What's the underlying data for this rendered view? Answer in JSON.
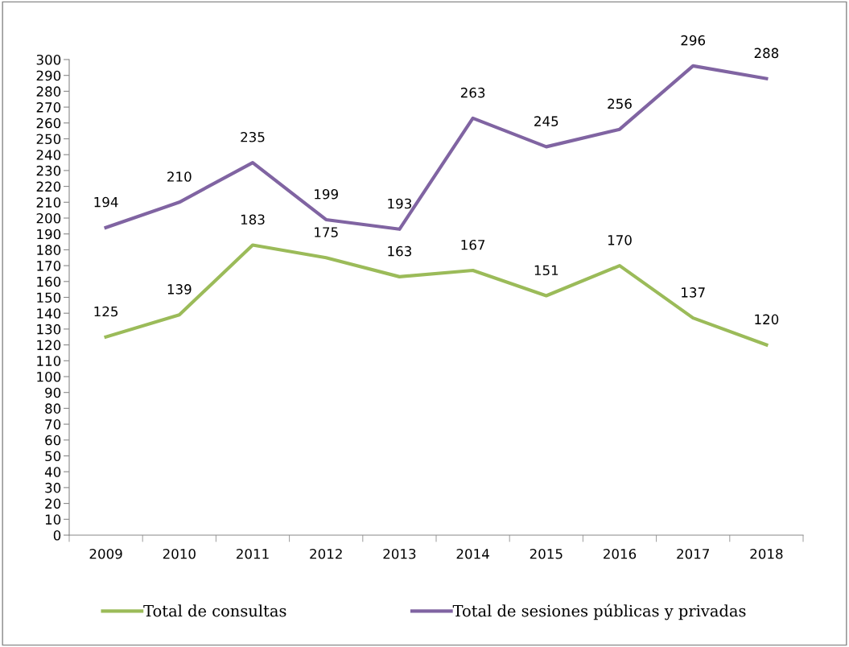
{
  "chart_data": {
    "type": "line",
    "categories": [
      "2009",
      "2010",
      "2011",
      "2012",
      "2013",
      "2014",
      "2015",
      "2016",
      "2017",
      "2018"
    ],
    "series": [
      {
        "name": "Total de consultas",
        "color": "#9bbb59",
        "values": [
          125,
          139,
          183,
          175,
          163,
          167,
          151,
          170,
          137,
          120
        ]
      },
      {
        "name": "Total de sesiones públicas y privadas",
        "color": "#8064a2",
        "values": [
          194,
          210,
          235,
          199,
          193,
          263,
          245,
          256,
          296,
          288
        ]
      }
    ],
    "ylim": [
      0,
      300
    ],
    "yticks": [
      0,
      10,
      20,
      30,
      40,
      50,
      60,
      70,
      80,
      90,
      100,
      110,
      120,
      130,
      140,
      150,
      160,
      170,
      180,
      190,
      200,
      210,
      220,
      230,
      240,
      250,
      260,
      270,
      280,
      290,
      300
    ],
    "grid": false,
    "legend": "bottom",
    "data_labels": true,
    "marker": "none",
    "line_style": "solid"
  }
}
